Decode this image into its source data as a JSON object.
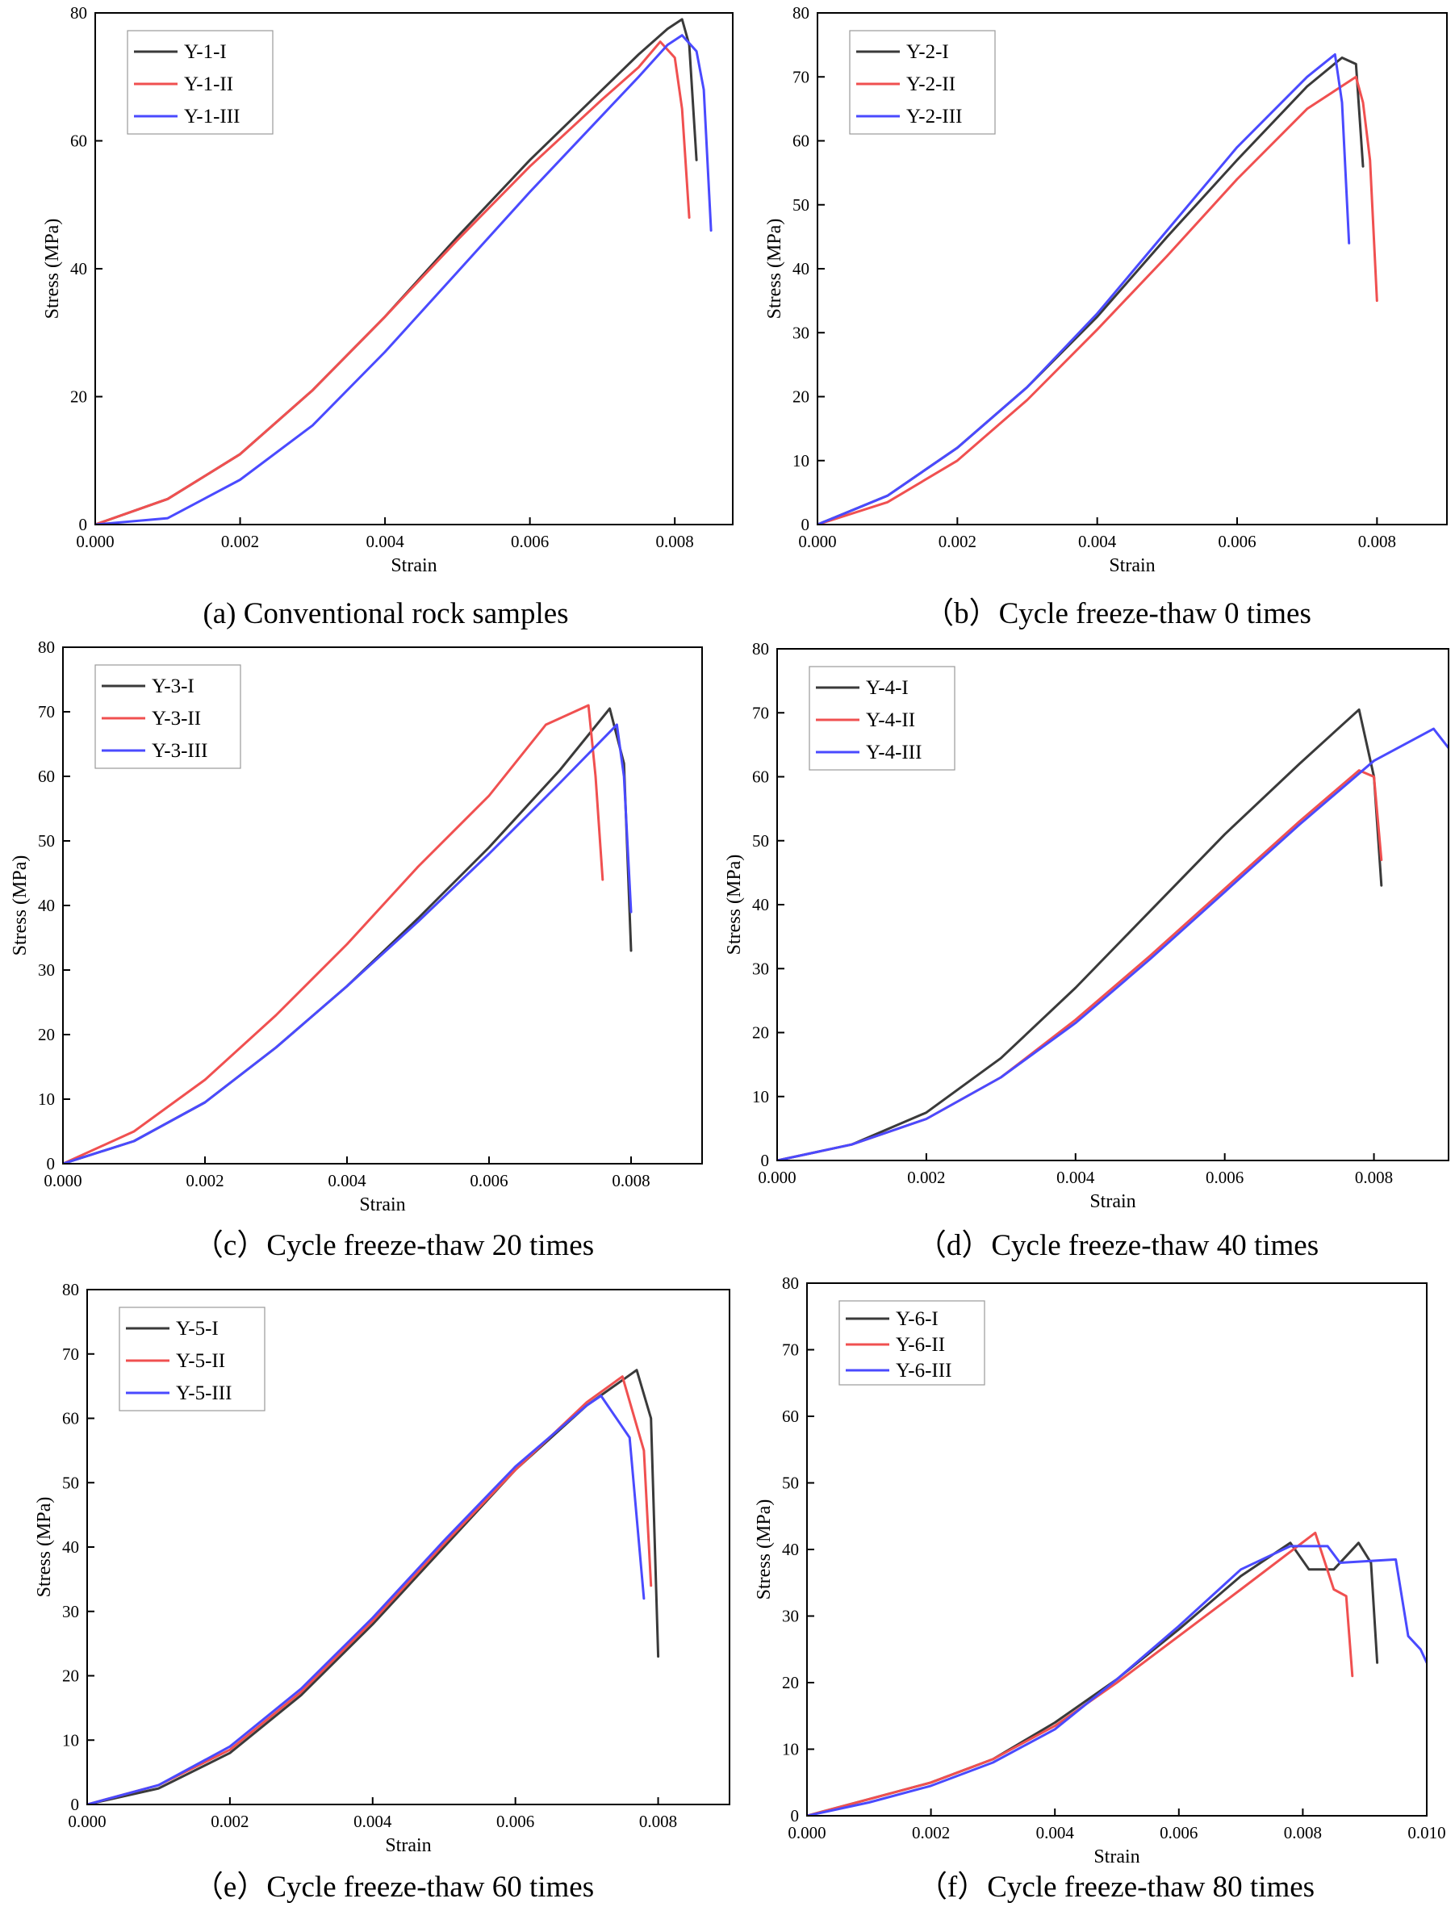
{
  "chart_data": [
    {
      "type": "line",
      "caption": "(a) Conventional rock samples",
      "xlabel": "Strain",
      "ylabel": "Stress (MPa)",
      "xlim": [
        0,
        0.0088
      ],
      "ylim": [
        0,
        80
      ],
      "xticks": [
        0.0,
        0.002,
        0.004,
        0.006,
        0.008
      ],
      "xtick_labels": [
        "0.000",
        "0.002",
        "0.004",
        "0.006",
        "0.008"
      ],
      "yticks": [
        0,
        20,
        40,
        60,
        80
      ],
      "ytick_labels": [
        "0",
        "20",
        "40",
        "60",
        "80"
      ],
      "legend": "top-left",
      "series": [
        {
          "name": "Y-1-I",
          "color": "#3a3a3a",
          "x": [
            0,
            0.001,
            0.002,
            0.003,
            0.004,
            0.005,
            0.006,
            0.007,
            0.0075,
            0.0079,
            0.0081,
            0.0082,
            0.0083
          ],
          "y": [
            0,
            4,
            11,
            21,
            32.5,
            45,
            57,
            68,
            73.5,
            77.5,
            79,
            75,
            57
          ]
        },
        {
          "name": "Y-1-II",
          "color": "#f05050",
          "x": [
            0,
            0.001,
            0.002,
            0.003,
            0.004,
            0.005,
            0.006,
            0.007,
            0.0075,
            0.0078,
            0.008,
            0.0081,
            0.0082
          ],
          "y": [
            0,
            4,
            11,
            21,
            32.5,
            44.5,
            56,
            66.5,
            71.5,
            75.5,
            73,
            65,
            48
          ]
        },
        {
          "name": "Y-1-III",
          "color": "#4a4aff",
          "x": [
            0,
            0.001,
            0.002,
            0.003,
            0.004,
            0.005,
            0.006,
            0.007,
            0.0075,
            0.0079,
            0.0081,
            0.0083,
            0.0084,
            0.0085
          ],
          "y": [
            0,
            1,
            7,
            15.5,
            27,
            39.5,
            52,
            64,
            70,
            75,
            76.5,
            74,
            68,
            46
          ]
        }
      ]
    },
    {
      "type": "line",
      "caption": "（b）Cycle freeze-thaw 0 times",
      "xlabel": "Strain",
      "ylabel": "Stress (MPa)",
      "xlim": [
        0,
        0.009
      ],
      "ylim": [
        0,
        80
      ],
      "xticks": [
        0.0,
        0.002,
        0.004,
        0.006,
        0.008
      ],
      "xtick_labels": [
        "0.000",
        "0.002",
        "0.004",
        "0.006",
        "0.008"
      ],
      "yticks": [
        0,
        10,
        20,
        30,
        40,
        50,
        60,
        70,
        80
      ],
      "ytick_labels": [
        "0",
        "10",
        "20",
        "30",
        "40",
        "50",
        "60",
        "70",
        "80"
      ],
      "legend": "top-left",
      "series": [
        {
          "name": "Y-2-I",
          "color": "#3a3a3a",
          "x": [
            0,
            0.001,
            0.002,
            0.003,
            0.004,
            0.005,
            0.006,
            0.007,
            0.0075,
            0.0077,
            0.0078
          ],
          "y": [
            0,
            4.5,
            12,
            21.5,
            32.5,
            45,
            57,
            68.5,
            73,
            72,
            56
          ]
        },
        {
          "name": "Y-2-II",
          "color": "#f05050",
          "x": [
            0,
            0.001,
            0.002,
            0.003,
            0.004,
            0.005,
            0.006,
            0.007,
            0.0077,
            0.0078,
            0.0079,
            0.008
          ],
          "y": [
            0,
            3.5,
            10,
            19.5,
            30.5,
            42,
            54,
            65,
            70,
            66,
            57,
            35
          ]
        },
        {
          "name": "Y-2-III",
          "color": "#4a4aff",
          "x": [
            0,
            0.001,
            0.002,
            0.003,
            0.004,
            0.005,
            0.006,
            0.007,
            0.0074,
            0.0075,
            0.0076
          ],
          "y": [
            0,
            4.5,
            12,
            21.5,
            33,
            46,
            59,
            70,
            73.5,
            66,
            44
          ]
        }
      ]
    },
    {
      "type": "line",
      "caption": "（c）Cycle freeze-thaw 20 times",
      "xlabel": "Strain",
      "ylabel": "Stress (MPa)",
      "xlim": [
        0,
        0.009
      ],
      "ylim": [
        0,
        80
      ],
      "xticks": [
        0.0,
        0.002,
        0.004,
        0.006,
        0.008
      ],
      "xtick_labels": [
        "0.000",
        "0.002",
        "0.004",
        "0.006",
        "0.008"
      ],
      "yticks": [
        0,
        10,
        20,
        30,
        40,
        50,
        60,
        70,
        80
      ],
      "ytick_labels": [
        "0",
        "10",
        "20",
        "30",
        "40",
        "50",
        "60",
        "70",
        "80"
      ],
      "legend": "top-left",
      "series": [
        {
          "name": "Y-3-I",
          "color": "#3a3a3a",
          "x": [
            0,
            0.001,
            0.002,
            0.003,
            0.004,
            0.005,
            0.006,
            0.007,
            0.0077,
            0.0079,
            0.008
          ],
          "y": [
            0,
            3.5,
            9.5,
            18,
            27.5,
            38,
            49,
            61,
            70.5,
            62,
            33
          ]
        },
        {
          "name": "Y-3-II",
          "color": "#f05050",
          "x": [
            0,
            0.001,
            0.002,
            0.003,
            0.004,
            0.005,
            0.006,
            0.0068,
            0.0074,
            0.0075,
            0.0076
          ],
          "y": [
            0,
            5,
            13,
            23,
            34,
            46,
            57,
            68,
            71,
            60,
            44
          ]
        },
        {
          "name": "Y-3-III",
          "color": "#4a4aff",
          "x": [
            0,
            0.001,
            0.002,
            0.003,
            0.004,
            0.005,
            0.006,
            0.007,
            0.0078,
            0.0079,
            0.008
          ],
          "y": [
            0,
            3.5,
            9.5,
            18,
            27.5,
            37.5,
            48,
            59,
            68,
            60,
            39
          ]
        }
      ]
    },
    {
      "type": "line",
      "caption": "（d）Cycle freeze-thaw 40 times",
      "xlabel": "Strain",
      "ylabel": "Stress (MPa)",
      "xlim": [
        0,
        0.009
      ],
      "ylim": [
        0,
        80
      ],
      "xticks": [
        0.0,
        0.002,
        0.004,
        0.006,
        0.008
      ],
      "xtick_labels": [
        "0.000",
        "0.002",
        "0.004",
        "0.006",
        "0.008"
      ],
      "yticks": [
        0,
        10,
        20,
        30,
        40,
        50,
        60,
        70,
        80
      ],
      "ytick_labels": [
        "0",
        "10",
        "20",
        "30",
        "40",
        "50",
        "60",
        "70",
        "80"
      ],
      "legend": "top-left",
      "series": [
        {
          "name": "Y-4-I",
          "color": "#3a3a3a",
          "x": [
            0,
            0.001,
            0.002,
            0.003,
            0.004,
            0.005,
            0.006,
            0.007,
            0.0078,
            0.008,
            0.0081
          ],
          "y": [
            0,
            2.5,
            7.5,
            16,
            27,
            39,
            51,
            62,
            70.5,
            60,
            43
          ]
        },
        {
          "name": "Y-4-II",
          "color": "#f05050",
          "x": [
            0,
            0.001,
            0.002,
            0.003,
            0.004,
            0.005,
            0.006,
            0.007,
            0.0078,
            0.008,
            0.0081
          ],
          "y": [
            0,
            2.5,
            6.5,
            13,
            22,
            32,
            42.5,
            53,
            61,
            60,
            47
          ]
        },
        {
          "name": "Y-4-III",
          "color": "#4a4aff",
          "x": [
            0,
            0.001,
            0.002,
            0.003,
            0.004,
            0.005,
            0.006,
            0.007,
            0.008,
            0.0088,
            0.009
          ],
          "y": [
            0,
            2.5,
            6.5,
            13,
            21.5,
            31.5,
            42,
            52.5,
            62.5,
            67.5,
            64.5
          ]
        }
      ]
    },
    {
      "type": "line",
      "caption": "（e）Cycle freeze-thaw 60 times",
      "xlabel": "Strain",
      "ylabel": "Stress (MPa)",
      "xlim": [
        0,
        0.009
      ],
      "ylim": [
        0,
        80
      ],
      "xticks": [
        0.0,
        0.002,
        0.004,
        0.006,
        0.008
      ],
      "xtick_labels": [
        "0.000",
        "0.002",
        "0.004",
        "0.006",
        "0.008"
      ],
      "yticks": [
        0,
        10,
        20,
        30,
        40,
        50,
        60,
        70,
        80
      ],
      "ytick_labels": [
        "0",
        "10",
        "20",
        "30",
        "40",
        "50",
        "60",
        "70",
        "80"
      ],
      "legend": "top-left",
      "series": [
        {
          "name": "Y-5-I",
          "color": "#3a3a3a",
          "x": [
            0,
            0.001,
            0.002,
            0.003,
            0.004,
            0.005,
            0.006,
            0.007,
            0.0077,
            0.0079,
            0.008
          ],
          "y": [
            0,
            2.5,
            8,
            17,
            28,
            40,
            52,
            62,
            67.5,
            60,
            23
          ]
        },
        {
          "name": "Y-5-II",
          "color": "#f05050",
          "x": [
            0,
            0.001,
            0.002,
            0.003,
            0.004,
            0.005,
            0.006,
            0.007,
            0.0075,
            0.0078,
            0.0079
          ],
          "y": [
            0,
            3,
            8.5,
            17.5,
            28.5,
            40.5,
            52,
            62.5,
            66.5,
            55,
            34
          ]
        },
        {
          "name": "Y-5-III",
          "color": "#4a4aff",
          "x": [
            0,
            0.001,
            0.002,
            0.003,
            0.004,
            0.005,
            0.006,
            0.007,
            0.0072,
            0.0076,
            0.0078
          ],
          "y": [
            0,
            3,
            9,
            18,
            29,
            41,
            52.5,
            62,
            63.5,
            57,
            32
          ]
        }
      ]
    },
    {
      "type": "line",
      "caption": "（f）Cycle freeze-thaw 80 times",
      "xlabel": "Strain",
      "ylabel": "Stress (MPa)",
      "xlim": [
        0,
        0.01
      ],
      "ylim": [
        0,
        80
      ],
      "xticks": [
        0.0,
        0.002,
        0.004,
        0.006,
        0.008,
        0.01
      ],
      "xtick_labels": [
        "0.000",
        "0.002",
        "0.004",
        "0.006",
        "0.008",
        "0.010"
      ],
      "yticks": [
        0,
        10,
        20,
        30,
        40,
        50,
        60,
        70,
        80
      ],
      "ytick_labels": [
        "0",
        "10",
        "20",
        "30",
        "40",
        "50",
        "60",
        "70",
        "80"
      ],
      "legend": "top-left",
      "series": [
        {
          "name": "Y-6-I",
          "color": "#3a3a3a",
          "x": [
            0,
            0.001,
            0.002,
            0.003,
            0.004,
            0.005,
            0.006,
            0.007,
            0.0078,
            0.0081,
            0.0085,
            0.0089,
            0.0091,
            0.0092
          ],
          "y": [
            0,
            2.5,
            5,
            8.5,
            14,
            20.5,
            28,
            36,
            41,
            37,
            37,
            41,
            38,
            23
          ]
        },
        {
          "name": "Y-6-II",
          "color": "#f05050",
          "x": [
            0,
            0.001,
            0.002,
            0.003,
            0.004,
            0.005,
            0.006,
            0.007,
            0.0082,
            0.0085,
            0.0087,
            0.0088
          ],
          "y": [
            0,
            2.5,
            5,
            8.5,
            13.5,
            20,
            27,
            34,
            42.5,
            34,
            33,
            21
          ]
        },
        {
          "name": "Y-6-III",
          "color": "#4a4aff",
          "x": [
            0,
            0.001,
            0.002,
            0.003,
            0.004,
            0.005,
            0.006,
            0.007,
            0.0078,
            0.0084,
            0.0086,
            0.0095,
            0.0097,
            0.0099,
            0.01
          ],
          "y": [
            0,
            2,
            4.5,
            8,
            13,
            20.5,
            28.5,
            37,
            40.5,
            40.5,
            38,
            38.5,
            27,
            25,
            23
          ]
        }
      ]
    }
  ]
}
